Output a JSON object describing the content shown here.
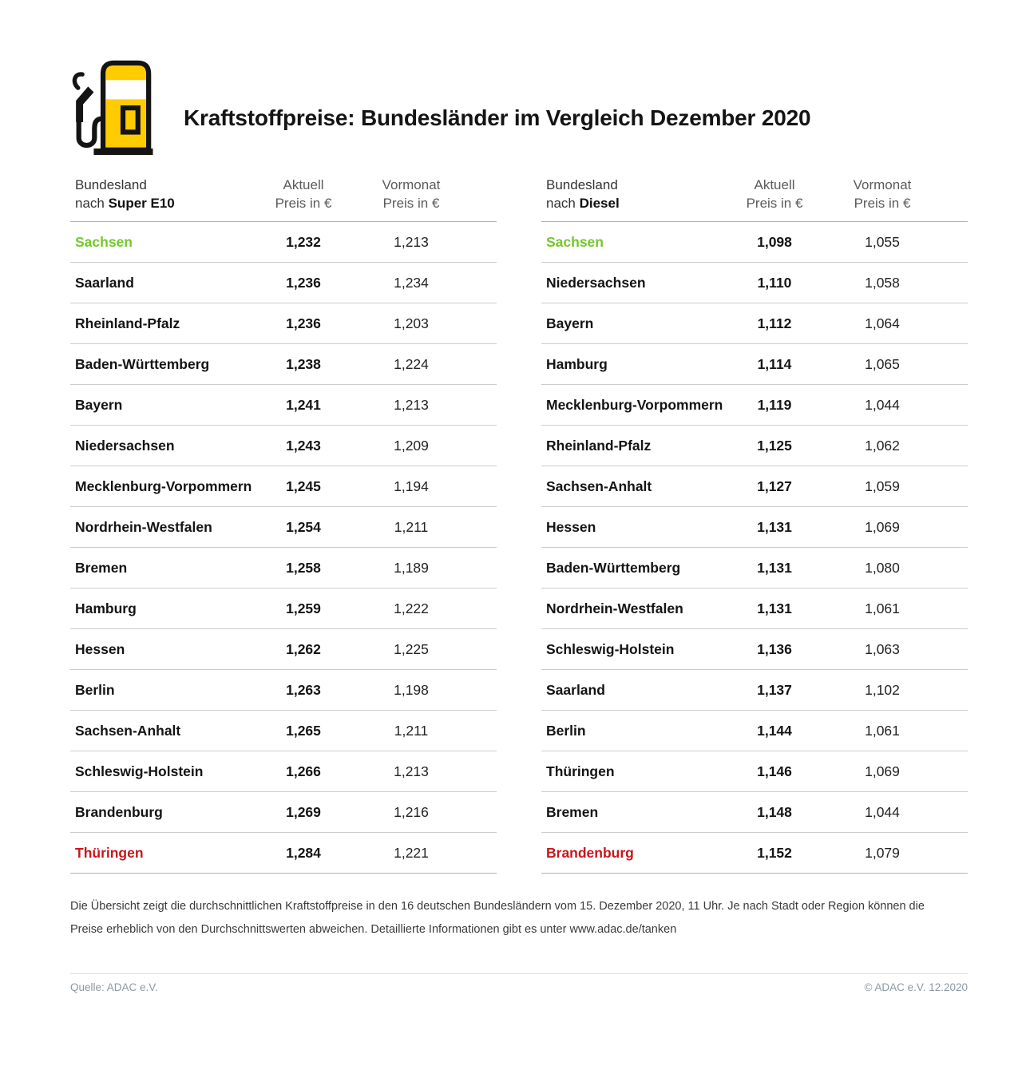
{
  "title": "Kraftstoffpreise: Bundesländer im Vergleich Dezember 2020",
  "colors": {
    "brand_yellow": "#FFCC00",
    "cheapest_green": "#74C82C",
    "most_expensive_red": "#C9161D"
  },
  "tables": [
    {
      "header": {
        "line1": "Bundesland",
        "line2_prefix": "nach ",
        "fuel": "Super E10"
      },
      "columns": {
        "aktuell_line1": "Aktuell",
        "aktuell_line2": "Preis in €",
        "vormonat_line1": "Vormonat",
        "vormonat_line2": "Preis in €"
      },
      "rows": [
        {
          "state": "Sachsen",
          "aktuell": "1,232",
          "vormonat": "1,213",
          "highlight": "green"
        },
        {
          "state": "Saarland",
          "aktuell": "1,236",
          "vormonat": "1,234",
          "highlight": "none"
        },
        {
          "state": "Rheinland-Pfalz",
          "aktuell": "1,236",
          "vormonat": "1,203",
          "highlight": "none"
        },
        {
          "state": "Baden-Württemberg",
          "aktuell": "1,238",
          "vormonat": "1,224",
          "highlight": "none"
        },
        {
          "state": "Bayern",
          "aktuell": "1,241",
          "vormonat": "1,213",
          "highlight": "none"
        },
        {
          "state": "Niedersachsen",
          "aktuell": "1,243",
          "vormonat": "1,209",
          "highlight": "none"
        },
        {
          "state": "Mecklenburg-Vorpommern",
          "aktuell": "1,245",
          "vormonat": "1,194",
          "highlight": "none"
        },
        {
          "state": "Nordrhein-Westfalen",
          "aktuell": "1,254",
          "vormonat": "1,211",
          "highlight": "none"
        },
        {
          "state": "Bremen",
          "aktuell": "1,258",
          "vormonat": "1,189",
          "highlight": "none"
        },
        {
          "state": "Hamburg",
          "aktuell": "1,259",
          "vormonat": "1,222",
          "highlight": "none"
        },
        {
          "state": "Hessen",
          "aktuell": "1,262",
          "vormonat": "1,225",
          "highlight": "none"
        },
        {
          "state": "Berlin",
          "aktuell": "1,263",
          "vormonat": "1,198",
          "highlight": "none"
        },
        {
          "state": "Sachsen-Anhalt",
          "aktuell": "1,265",
          "vormonat": "1,211",
          "highlight": "none"
        },
        {
          "state": "Schleswig-Holstein",
          "aktuell": "1,266",
          "vormonat": "1,213",
          "highlight": "none"
        },
        {
          "state": "Brandenburg",
          "aktuell": "1,269",
          "vormonat": "1,216",
          "highlight": "none"
        },
        {
          "state": "Thüringen",
          "aktuell": "1,284",
          "vormonat": "1,221",
          "highlight": "red"
        }
      ]
    },
    {
      "header": {
        "line1": "Bundesland",
        "line2_prefix": "nach ",
        "fuel": "Diesel"
      },
      "columns": {
        "aktuell_line1": "Aktuell",
        "aktuell_line2": "Preis in €",
        "vormonat_line1": "Vormonat",
        "vormonat_line2": "Preis in €"
      },
      "rows": [
        {
          "state": "Sachsen",
          "aktuell": "1,098",
          "vormonat": "1,055",
          "highlight": "green"
        },
        {
          "state": "Niedersachsen",
          "aktuell": "1,110",
          "vormonat": "1,058",
          "highlight": "none"
        },
        {
          "state": "Bayern",
          "aktuell": "1,112",
          "vormonat": "1,064",
          "highlight": "none"
        },
        {
          "state": "Hamburg",
          "aktuell": "1,114",
          "vormonat": "1,065",
          "highlight": "none"
        },
        {
          "state": "Mecklenburg-Vorpommern",
          "aktuell": "1,119",
          "vormonat": "1,044",
          "highlight": "none"
        },
        {
          "state": "Rheinland-Pfalz",
          "aktuell": "1,125",
          "vormonat": "1,062",
          "highlight": "none"
        },
        {
          "state": "Sachsen-Anhalt",
          "aktuell": "1,127",
          "vormonat": "1,059",
          "highlight": "none"
        },
        {
          "state": "Hessen",
          "aktuell": "1,131",
          "vormonat": "1,069",
          "highlight": "none"
        },
        {
          "state": "Baden-Württemberg",
          "aktuell": "1,131",
          "vormonat": "1,080",
          "highlight": "none"
        },
        {
          "state": "Nordrhein-Westfalen",
          "aktuell": "1,131",
          "vormonat": "1,061",
          "highlight": "none"
        },
        {
          "state": "Schleswig-Holstein",
          "aktuell": "1,136",
          "vormonat": "1,063",
          "highlight": "none"
        },
        {
          "state": "Saarland",
          "aktuell": "1,137",
          "vormonat": "1,102",
          "highlight": "none"
        },
        {
          "state": "Berlin",
          "aktuell": "1,144",
          "vormonat": "1,061",
          "highlight": "none"
        },
        {
          "state": "Thüringen",
          "aktuell": "1,146",
          "vormonat": "1,069",
          "highlight": "none"
        },
        {
          "state": "Bremen",
          "aktuell": "1,148",
          "vormonat": "1,044",
          "highlight": "none"
        },
        {
          "state": "Brandenburg",
          "aktuell": "1,152",
          "vormonat": "1,079",
          "highlight": "red"
        }
      ]
    }
  ],
  "footnote": {
    "line1": "Die Übersicht zeigt die durchschnittlichen Kraftstoffpreise in den 16 deutschen Bundesländern vom 15. Dezember 2020, 11 Uhr. Je nach Stadt oder Region können die",
    "line2": "Preise erheblich von den Durchschnittswerten abweichen. Detaillierte Informationen gibt es unter www.adac.de/tanken"
  },
  "footer": {
    "source": "Quelle: ADAC e.V.",
    "copyright": "© ADAC e.V. 12.2020"
  },
  "chart_data": [
    {
      "type": "table",
      "title": "Bundesland nach Super E10",
      "columns": [
        "Bundesland",
        "Aktuell Preis in €",
        "Vormonat Preis in €"
      ],
      "rows": [
        [
          "Sachsen",
          1.232,
          1.213
        ],
        [
          "Saarland",
          1.236,
          1.234
        ],
        [
          "Rheinland-Pfalz",
          1.236,
          1.203
        ],
        [
          "Baden-Württemberg",
          1.238,
          1.224
        ],
        [
          "Bayern",
          1.241,
          1.213
        ],
        [
          "Niedersachsen",
          1.243,
          1.209
        ],
        [
          "Mecklenburg-Vorpommern",
          1.245,
          1.194
        ],
        [
          "Nordrhein-Westfalen",
          1.254,
          1.211
        ],
        [
          "Bremen",
          1.258,
          1.189
        ],
        [
          "Hamburg",
          1.259,
          1.222
        ],
        [
          "Hessen",
          1.262,
          1.225
        ],
        [
          "Berlin",
          1.263,
          1.198
        ],
        [
          "Sachsen-Anhalt",
          1.265,
          1.211
        ],
        [
          "Schleswig-Holstein",
          1.266,
          1.213
        ],
        [
          "Brandenburg",
          1.269,
          1.216
        ],
        [
          "Thüringen",
          1.284,
          1.221
        ]
      ]
    },
    {
      "type": "table",
      "title": "Bundesland nach Diesel",
      "columns": [
        "Bundesland",
        "Aktuell Preis in €",
        "Vormonat Preis in €"
      ],
      "rows": [
        [
          "Sachsen",
          1.098,
          1.055
        ],
        [
          "Niedersachsen",
          1.11,
          1.058
        ],
        [
          "Bayern",
          1.112,
          1.064
        ],
        [
          "Hamburg",
          1.114,
          1.065
        ],
        [
          "Mecklenburg-Vorpommern",
          1.119,
          1.044
        ],
        [
          "Rheinland-Pfalz",
          1.125,
          1.062
        ],
        [
          "Sachsen-Anhalt",
          1.127,
          1.059
        ],
        [
          "Hessen",
          1.131,
          1.069
        ],
        [
          "Baden-Württemberg",
          1.131,
          1.08
        ],
        [
          "Nordrhein-Westfalen",
          1.131,
          1.061
        ],
        [
          "Schleswig-Holstein",
          1.136,
          1.063
        ],
        [
          "Saarland",
          1.137,
          1.102
        ],
        [
          "Berlin",
          1.144,
          1.061
        ],
        [
          "Thüringen",
          1.146,
          1.069
        ],
        [
          "Bremen",
          1.148,
          1.044
        ],
        [
          "Brandenburg",
          1.152,
          1.079
        ]
      ]
    }
  ]
}
